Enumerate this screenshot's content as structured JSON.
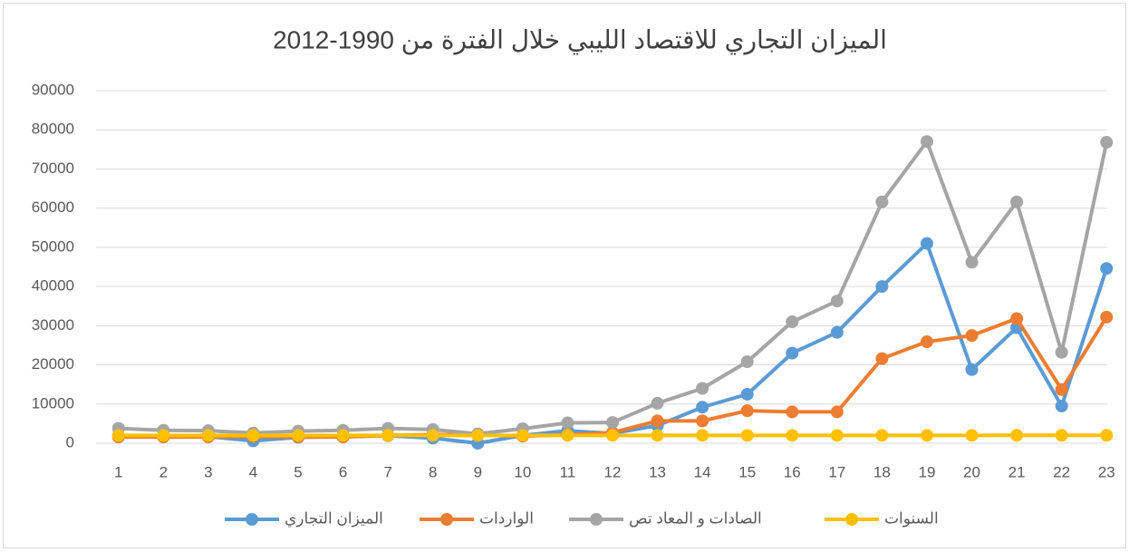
{
  "chart_data": {
    "type": "line",
    "title": "الميزان التجاري للاقتصاد الليبي خلال الفترة من 1990-2012",
    "categories": [
      1,
      2,
      3,
      4,
      5,
      6,
      7,
      8,
      9,
      10,
      11,
      12,
      13,
      14,
      15,
      16,
      17,
      18,
      19,
      20,
      21,
      22,
      23
    ],
    "series": [
      {
        "name": "الميزان التجاري",
        "color": "#5b9bd5",
        "values": [
          2000,
          1800,
          1700,
          600,
          1500,
          1700,
          1900,
          1300,
          0,
          2000,
          3200,
          2500,
          4500,
          9200,
          12500,
          23000,
          28300,
          40000,
          51000,
          18800,
          29500,
          9500,
          44600
        ]
      },
      {
        "name": "الواردات",
        "color": "#ed7d31",
        "values": [
          1600,
          1600,
          1600,
          1700,
          1600,
          1600,
          2000,
          2200,
          2200,
          1800,
          2200,
          2700,
          5700,
          5700,
          8300,
          8000,
          8000,
          21600,
          25900,
          27500,
          31800,
          13700,
          32200
        ]
      },
      {
        "name": "الصادات و المعاد تص",
        "color": "#a5a5a5",
        "values": [
          3800,
          3300,
          3200,
          2600,
          3100,
          3300,
          3800,
          3500,
          2400,
          3700,
          5200,
          5300,
          10200,
          14000,
          20800,
          31000,
          36300,
          61600,
          77000,
          46200,
          61600,
          23200,
          76800
        ]
      },
      {
        "name": "السنوات",
        "color": "#ffc000",
        "values": [
          1990,
          1991,
          1992,
          1993,
          1994,
          1995,
          1996,
          1997,
          1998,
          1999,
          2000,
          2001,
          2002,
          2003,
          2004,
          2005,
          2006,
          2007,
          2008,
          2009,
          2010,
          2011,
          2012
        ]
      }
    ],
    "ylim": [
      0,
      90000
    ],
    "yticks": [
      0,
      10000,
      20000,
      30000,
      40000,
      50000,
      60000,
      70000,
      80000,
      90000
    ],
    "grid": true,
    "legend": "bottom"
  }
}
